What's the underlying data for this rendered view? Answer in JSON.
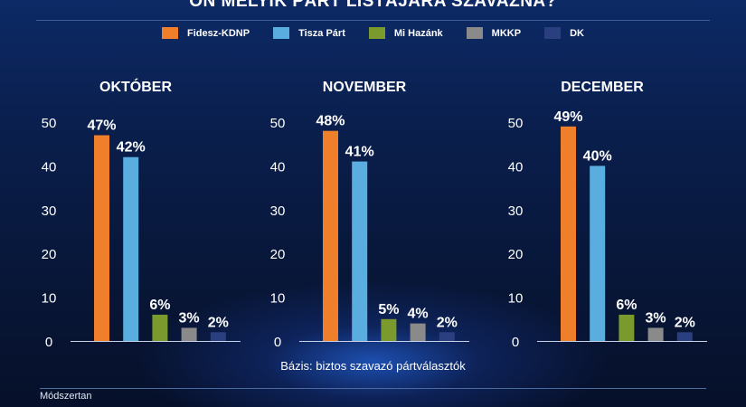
{
  "title": "ÖN MELYIK PÁRT LISTÁJÁRA SZAVAZNA?",
  "basis": "Bázis: biztos szavazó pártválasztók",
  "methodology_label": "Módszertan",
  "chart_data": {
    "type": "bar",
    "title": "ÖN MELYIK PÁRT LISTÁJÁRA SZAVAZNA?",
    "legend_placement": "top",
    "grid": false,
    "ylim": [
      0,
      50
    ],
    "yticks": [
      0,
      10,
      20,
      30,
      40,
      50
    ],
    "categories": [
      "Fidesz-KDNP",
      "Tisza Párt",
      "Mi Hazánk",
      "MKKP",
      "DK"
    ],
    "colors": [
      "#f07f2b",
      "#5aaedf",
      "#7a9a2e",
      "#8a8a8a",
      "#2a3f80"
    ],
    "panels": [
      {
        "title": "OKTÓBER",
        "values": [
          47,
          42,
          6,
          3,
          2
        ],
        "labels": [
          "47%",
          "42%",
          "6%",
          "3%",
          "2%"
        ]
      },
      {
        "title": "NOVEMBER",
        "values": [
          48,
          41,
          5,
          4,
          2
        ],
        "labels": [
          "48%",
          "41%",
          "5%",
          "4%",
          "2%"
        ]
      },
      {
        "title": "DECEMBER",
        "values": [
          49,
          40,
          6,
          3,
          2
        ],
        "labels": [
          "49%",
          "40%",
          "6%",
          "3%",
          "2%"
        ]
      }
    ]
  }
}
